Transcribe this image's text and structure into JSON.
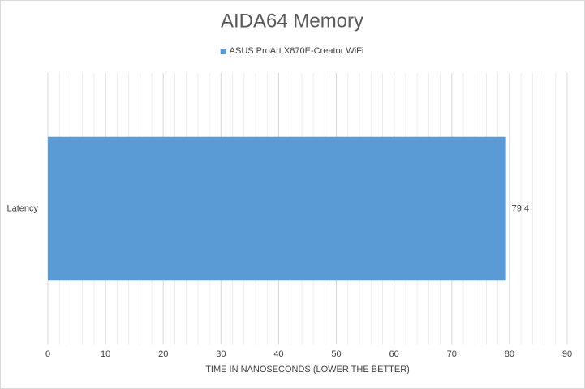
{
  "chart_data": {
    "type": "hbar",
    "title": "AIDA64 Memory",
    "categories": [
      "Latency"
    ],
    "series": [
      {
        "name": "ASUS ProArt X870E-Creator WiFi",
        "color": "#5b9bd5",
        "values": [
          79.4
        ]
      }
    ],
    "x_label": "TIME IN NANOSECONDS (LOWER THE BETTER)",
    "xlim": [
      0,
      90
    ],
    "xticks": [
      0,
      10,
      20,
      30,
      40,
      50,
      60,
      70,
      80,
      90
    ],
    "xminor_step": 2,
    "grid": true,
    "legend": "top"
  }
}
